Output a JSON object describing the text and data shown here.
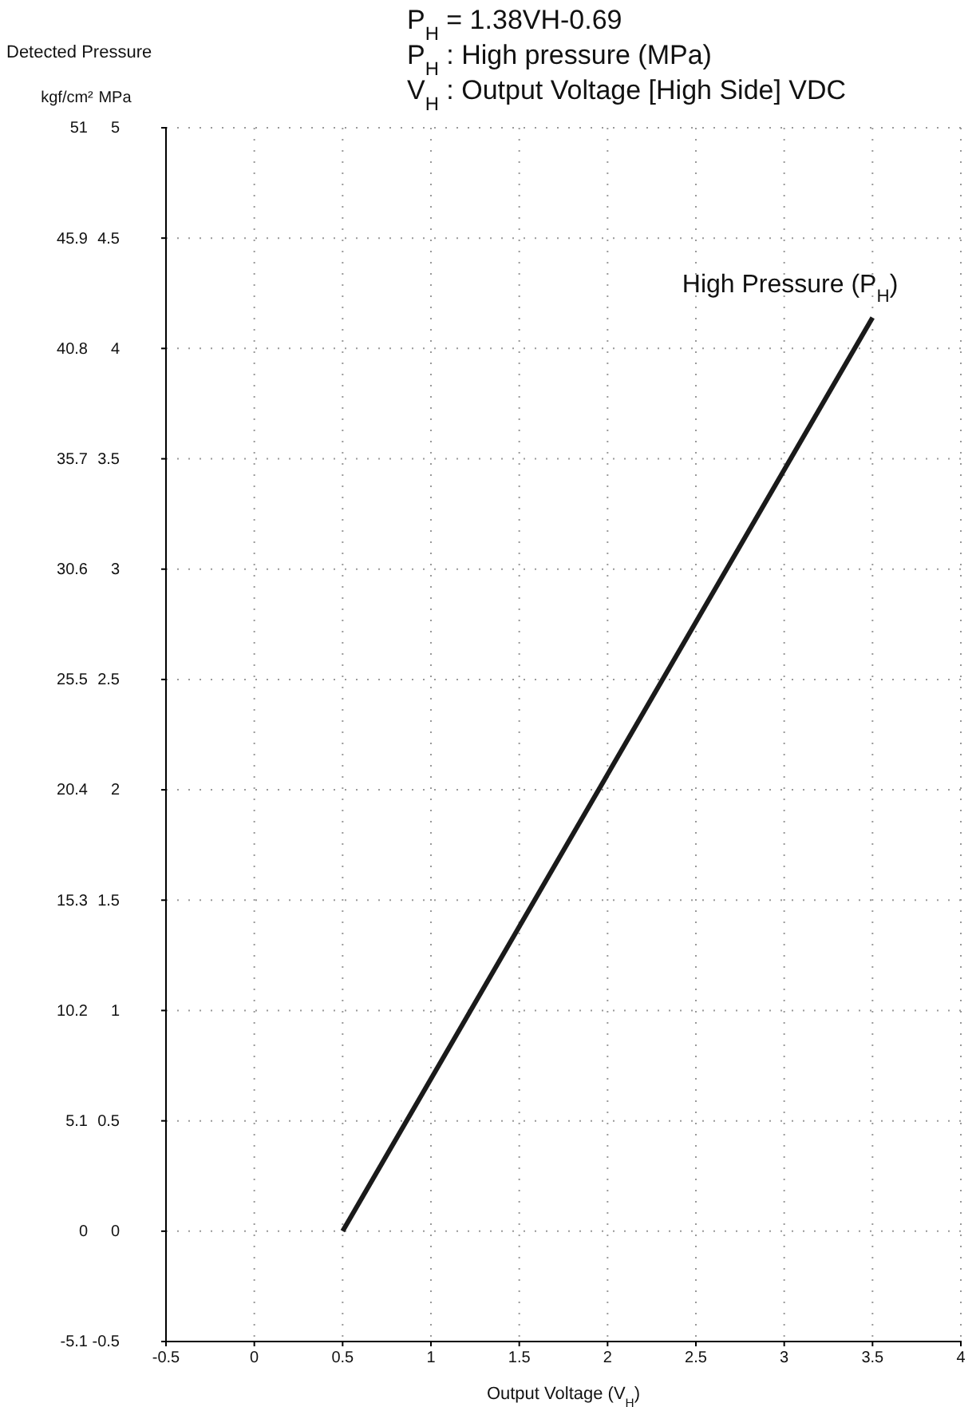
{
  "chart_data": {
    "type": "line",
    "title": "Detected Pressure",
    "xlabel": "Output Voltage (V$_{H}$)",
    "ylabel": "MPa",
    "y2label": "kgf/cm²",
    "annotations": [
      "P$_{H}$ = 1.38VH-0.69",
      "P$_{H}$ : High pressure (MPa)",
      "V$_{H}$ : Output Voltage [High Side] VDC"
    ],
    "x": [
      0.5,
      3.5
    ],
    "series": [
      {
        "name": "High Pressure (P$_{H}$)",
        "color": "#1a1a1a",
        "values": [
          0,
          4.14
        ]
      }
    ],
    "xlim": [
      -0.5,
      4.0
    ],
    "xticks": [
      -0.5,
      0,
      0.5,
      1,
      1.5,
      2,
      2.5,
      3,
      3.5,
      4
    ],
    "ylim": [
      -0.5,
      5.0
    ],
    "yticks": [
      -0.5,
      0,
      0.5,
      1.0,
      1.5,
      2.0,
      2.5,
      3.0,
      3.5,
      4.0,
      4.5,
      5.0
    ],
    "y2lim": [
      -5.1,
      51.0
    ],
    "y2ticks": [
      -5.1,
      0,
      5.1,
      10.2,
      15.3,
      20.4,
      25.5,
      30.6,
      35.7,
      40.8,
      45.9,
      51.0
    ],
    "grid": true,
    "legend": false,
    "marker": "none",
    "line_style": "solid"
  }
}
